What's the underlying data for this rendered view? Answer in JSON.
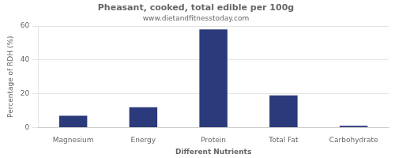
{
  "chart_data": {
    "type": "bar",
    "title": "Pheasant, cooked, total edible per 100g",
    "subtitle": "www.dietandfitnesstoday.com",
    "xlabel": "Different Nutrients",
    "ylabel": "Percentage of RDH (%)",
    "categories": [
      "Magnesium",
      "Energy",
      "Protein",
      "Total Fat",
      "Carbohydrate"
    ],
    "values": [
      7,
      12,
      58,
      19,
      1
    ],
    "color": "#2b3a7a",
    "ylim": [
      0,
      60
    ],
    "yticks": [
      0,
      20,
      40,
      60
    ],
    "grid": true
  }
}
